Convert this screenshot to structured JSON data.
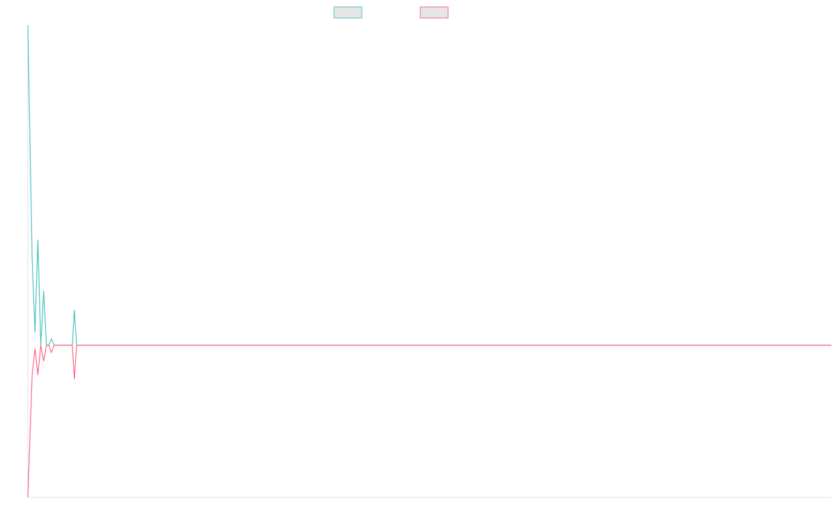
{
  "chart_data": {
    "type": "line",
    "x": [
      0,
      1.5,
      2.5,
      3.5,
      4.5,
      5.5,
      6.5,
      7.3,
      8.2,
      9.2,
      15.5,
      16.2,
      17,
      280
    ],
    "xlim": [
      0,
      280
    ],
    "ylim": [
      -47.5,
      100
    ],
    "series": [
      {
        "color": "#4bc0c0",
        "values": [
          100,
          27,
          4,
          33,
          0,
          17,
          0,
          0,
          2,
          0,
          0,
          11,
          0,
          0
        ]
      },
      {
        "color": "#ff6384",
        "values": [
          -47.5,
          -9.3,
          -1,
          -9.3,
          0,
          -5,
          0,
          0,
          -2.2,
          0,
          0,
          -10.6,
          0,
          0
        ]
      }
    ]
  }
}
